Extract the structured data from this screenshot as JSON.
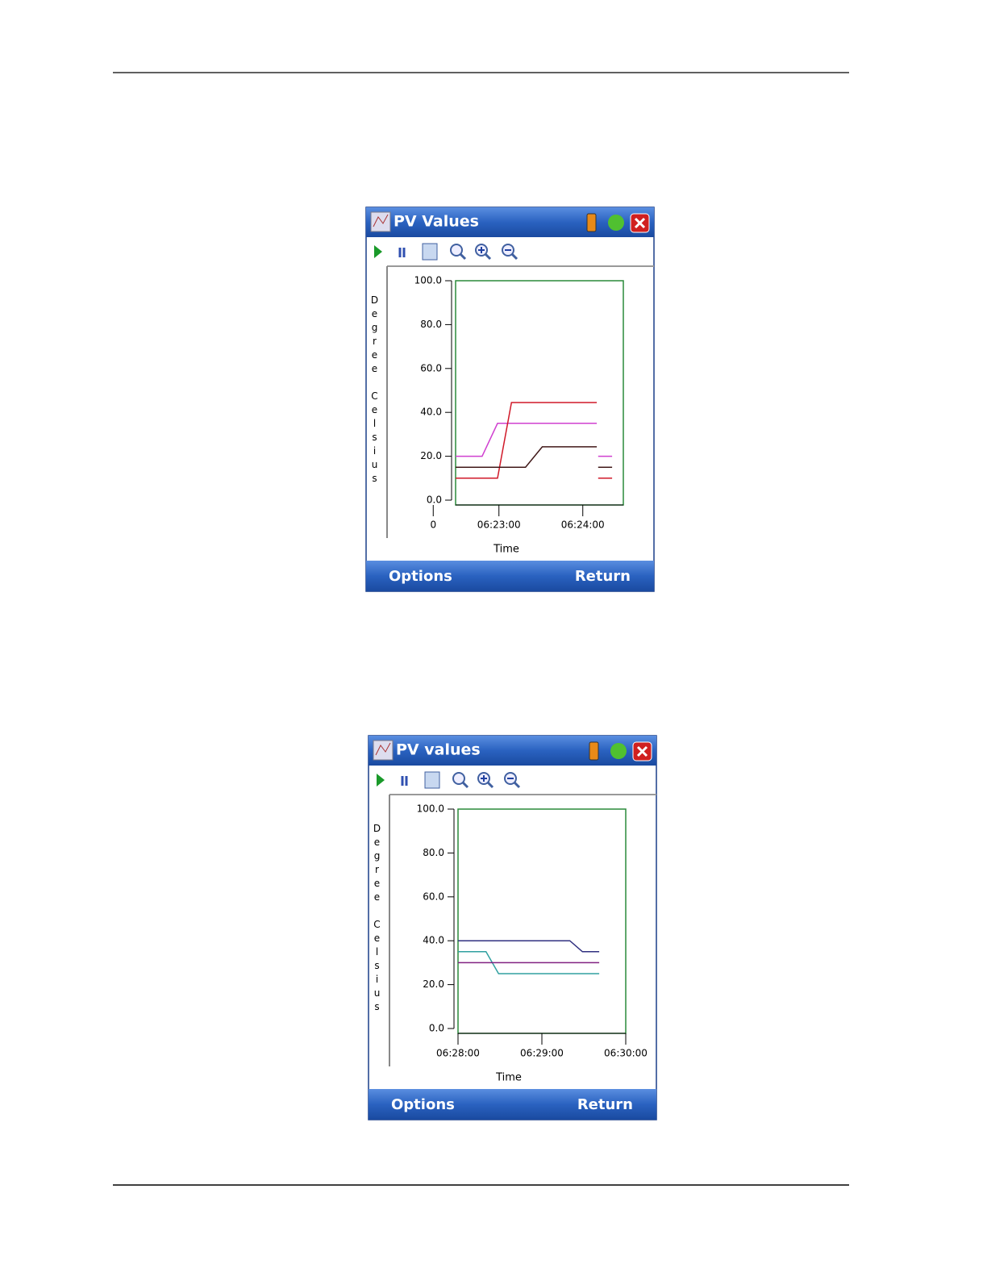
{
  "screens": [
    {
      "title": "PV Values",
      "left_softkey": "Options",
      "right_softkey": "Return",
      "chart": {
        "type": "line",
        "y_label": "Degree Celsius",
        "x_label": "Time",
        "ylim": [
          0,
          100
        ],
        "yticks": [
          {
            "value": 0,
            "label": "0.0"
          },
          {
            "value": 20,
            "label": "20.0"
          },
          {
            "value": 40,
            "label": "40.0"
          },
          {
            "value": 60,
            "label": "60.0"
          },
          {
            "value": 80,
            "label": "80.0"
          },
          {
            "value": 100,
            "label": "100.0"
          }
        ],
        "xlim": [
          "06:22:29",
          "06:24:29"
        ],
        "xticks": [
          {
            "value": "06:22:13",
            "label": "0"
          },
          "06:23:00",
          "06:24:00"
        ],
        "series": [
          {
            "color": "#d040d0",
            "x": [
              "06:22:29",
              "06:22:48",
              "06:22:59",
              "06:24:10",
              "06:24:10",
              "06:24:11",
              "06:24:21"
            ],
            "values": [
              20,
              20,
              35,
              35,
              null,
              20,
              20
            ]
          },
          {
            "color": "#d01828",
            "x": [
              "06:22:29",
              "06:22:59",
              "06:23:09",
              "06:24:10",
              "06:24:10",
              "06:24:11",
              "06:24:21"
            ],
            "values": [
              10,
              10,
              44.5,
              44.5,
              null,
              10,
              10
            ]
          },
          {
            "color": "#401818",
            "x": [
              "06:22:29",
              "06:23:19",
              "06:23:31",
              "06:24:10",
              "06:24:10",
              "06:24:11",
              "06:24:21"
            ],
            "values": [
              15,
              15,
              24.3,
              24.3,
              null,
              15,
              15
            ]
          }
        ]
      }
    },
    {
      "title": "PV values",
      "left_softkey": "Options",
      "right_softkey": "Return",
      "chart": {
        "type": "line",
        "y_label": "Degree Celsius",
        "x_label": "Time",
        "ylim": [
          0,
          100
        ],
        "yticks": [
          {
            "value": 0,
            "label": "0.0"
          },
          {
            "value": 20,
            "label": "20.0"
          },
          {
            "value": 40,
            "label": "40.0"
          },
          {
            "value": 60,
            "label": "60.0"
          },
          {
            "value": 80,
            "label": "80.0"
          },
          {
            "value": 100,
            "label": "100.0"
          }
        ],
        "xlim": [
          "06:28:00",
          "06:30:00"
        ],
        "xticks": [
          "06:28:00",
          "06:29:00",
          "06:30:00"
        ],
        "series": [
          {
            "color": "#303080",
            "x": [
              "06:28:00",
              "06:29:20",
              "06:29:29",
              "06:29:41"
            ],
            "values": [
              40,
              40,
              35,
              35
            ]
          },
          {
            "color": "#30a0a0",
            "x": [
              "06:28:00",
              "06:28:20",
              "06:28:29",
              "06:29:41"
            ],
            "values": [
              35,
              35,
              25,
              25
            ]
          },
          {
            "color": "#802080",
            "x": [
              "06:28:00",
              "06:29:41"
            ],
            "values": [
              30,
              30
            ]
          }
        ]
      }
    }
  ]
}
